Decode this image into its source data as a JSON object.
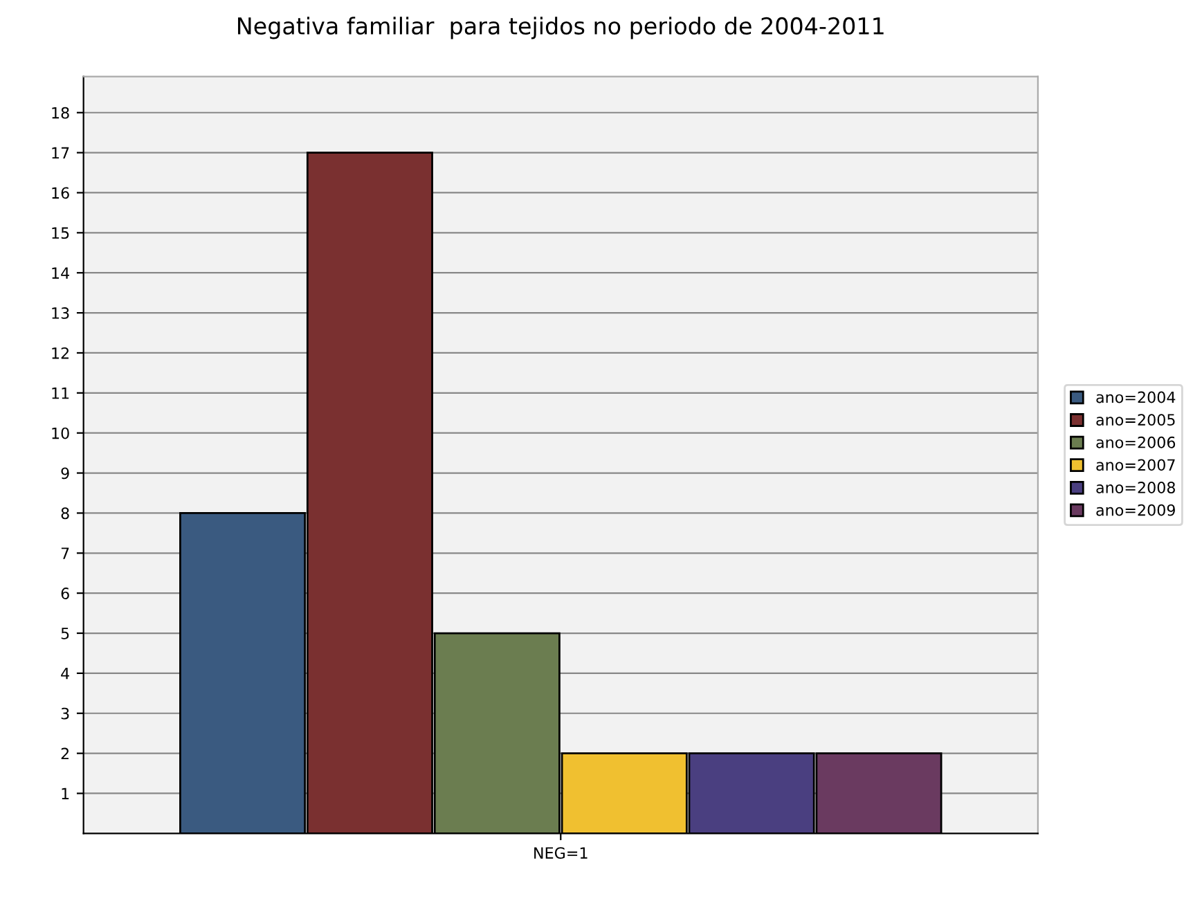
{
  "chart_data": {
    "type": "bar",
    "title": "Negativa familiar  para tejidos no periodo de 2004-2011",
    "categories": [
      "NEG=1"
    ],
    "series": [
      {
        "name": "ano=2004",
        "color": "#3a5a80",
        "values": [
          8
        ]
      },
      {
        "name": "ano=2005",
        "color": "#7a3030",
        "values": [
          17
        ]
      },
      {
        "name": "ano=2006",
        "color": "#6b7d50",
        "values": [
          5
        ]
      },
      {
        "name": "ano=2007",
        "color": "#f0c030",
        "values": [
          2
        ]
      },
      {
        "name": "ano=2008",
        "color": "#4a3f80",
        "values": [
          2
        ]
      },
      {
        "name": "ano=2009",
        "color": "#6a3a60",
        "values": [
          2
        ]
      }
    ],
    "ylim": [
      0,
      18.9
    ],
    "yticks": [
      1,
      2,
      3,
      4,
      5,
      6,
      7,
      8,
      9,
      10,
      11,
      12,
      13,
      14,
      15,
      16,
      17,
      18
    ],
    "grid": "y",
    "legend": "right"
  }
}
